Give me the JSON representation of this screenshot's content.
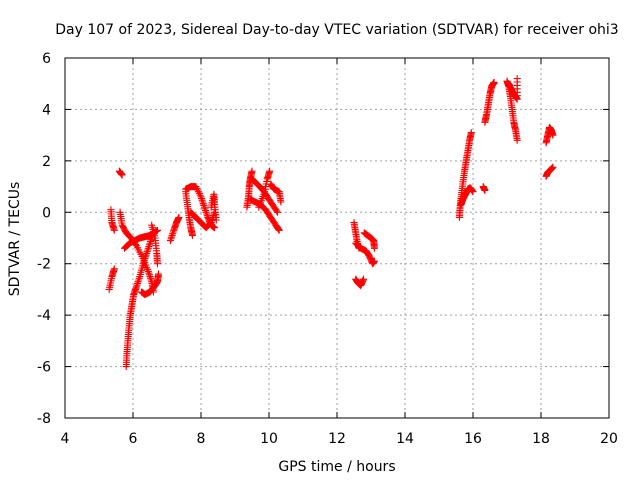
{
  "chart_data": {
    "type": "scatter",
    "title": "Day 107 of 2023, Sidereal Day-to-day VTEC variation (SDTVAR) for receiver ohi3",
    "xlabel": "GPS time / hours",
    "ylabel": "SDTVAR / TECUs",
    "xlim": [
      4,
      20
    ],
    "ylim": [
      -8,
      6
    ],
    "xticks": [
      4,
      6,
      8,
      10,
      12,
      14,
      16,
      18,
      20
    ],
    "yticks": [
      -8,
      -6,
      -4,
      -2,
      0,
      2,
      4,
      6
    ],
    "grid": true,
    "marker": "+",
    "series": [
      {
        "name": "SDTVAR",
        "color": "#ff0000",
        "segments": [
          [
            [
              5.3,
              -3.0
            ],
            [
              5.38,
              -2.5
            ],
            [
              5.45,
              -2.2
            ]
          ],
          [
            [
              5.35,
              0.1
            ],
            [
              5.38,
              -0.4
            ],
            [
              5.45,
              -0.7
            ]
          ],
          [
            [
              5.6,
              1.6
            ],
            [
              5.68,
              1.45
            ]
          ],
          [
            [
              5.62,
              0.0
            ],
            [
              5.68,
              -0.5
            ],
            [
              5.8,
              -0.8
            ],
            [
              5.95,
              -1.0
            ],
            [
              6.1,
              -1.3
            ],
            [
              6.3,
              -1.8
            ],
            [
              6.45,
              -2.3
            ],
            [
              6.55,
              -2.7
            ],
            [
              6.6,
              -3.1
            ]
          ],
          [
            [
              5.8,
              -6.0
            ],
            [
              5.82,
              -5.5
            ],
            [
              5.85,
              -5.0
            ],
            [
              5.88,
              -4.5
            ],
            [
              5.92,
              -4.0
            ],
            [
              5.97,
              -3.6
            ],
            [
              6.02,
              -3.2
            ],
            [
              6.1,
              -2.9
            ],
            [
              6.2,
              -2.5
            ],
            [
              6.3,
              -2.0
            ],
            [
              6.4,
              -1.6
            ],
            [
              6.5,
              -1.2
            ],
            [
              6.6,
              -0.8
            ]
          ],
          [
            [
              5.75,
              -1.4
            ],
            [
              5.9,
              -1.2
            ],
            [
              6.05,
              -1.1
            ],
            [
              6.2,
              -1.0
            ],
            [
              6.35,
              -0.95
            ],
            [
              6.5,
              -0.9
            ],
            [
              6.62,
              -0.8
            ],
            [
              6.72,
              -0.7
            ]
          ],
          [
            [
              6.25,
              -3.1
            ],
            [
              6.35,
              -3.2
            ],
            [
              6.5,
              -3.1
            ],
            [
              6.62,
              -2.9
            ],
            [
              6.72,
              -2.7
            ],
            [
              6.75,
              -2.4
            ]
          ],
          [
            [
              6.55,
              -0.5
            ],
            [
              6.65,
              -1.0
            ],
            [
              6.7,
              -1.6
            ],
            [
              6.72,
              -2.0
            ]
          ],
          [
            [
              7.1,
              -1.1
            ],
            [
              7.2,
              -0.7
            ],
            [
              7.28,
              -0.4
            ],
            [
              7.35,
              -0.2
            ]
          ],
          [
            [
              7.55,
              0.8
            ],
            [
              7.6,
              0.3
            ],
            [
              7.65,
              -0.2
            ],
            [
              7.7,
              -0.6
            ],
            [
              7.75,
              -0.9
            ]
          ],
          [
            [
              7.55,
              0.9
            ],
            [
              7.7,
              1.0
            ],
            [
              7.85,
              1.0
            ],
            [
              8.0,
              0.6
            ],
            [
              8.1,
              0.2
            ],
            [
              8.2,
              -0.2
            ],
            [
              8.3,
              -0.5
            ],
            [
              8.4,
              -0.6
            ]
          ],
          [
            [
              7.7,
              0.0
            ],
            [
              7.85,
              -0.2
            ],
            [
              8.0,
              -0.4
            ],
            [
              8.15,
              -0.6
            ],
            [
              8.3,
              -0.4
            ],
            [
              8.4,
              0.0
            ]
          ],
          [
            [
              8.3,
              0.2
            ],
            [
              8.38,
              0.7
            ],
            [
              8.4,
              0.3
            ],
            [
              8.45,
              -0.3
            ]
          ],
          [
            [
              9.35,
              0.2
            ],
            [
              9.4,
              0.6
            ],
            [
              9.42,
              1.0
            ],
            [
              9.45,
              1.3
            ],
            [
              9.5,
              1.6
            ]
          ],
          [
            [
              9.45,
              0.5
            ],
            [
              9.6,
              0.4
            ],
            [
              9.75,
              0.3
            ],
            [
              9.9,
              0.1
            ],
            [
              10.05,
              -0.2
            ],
            [
              10.2,
              -0.5
            ],
            [
              10.3,
              -0.7
            ]
          ],
          [
            [
              9.5,
              1.3
            ],
            [
              9.65,
              1.1
            ],
            [
              9.8,
              0.9
            ],
            [
              9.95,
              0.6
            ],
            [
              10.1,
              0.3
            ],
            [
              10.25,
              0.0
            ]
          ],
          [
            [
              9.7,
              0.2
            ],
            [
              9.85,
              0.7
            ],
            [
              9.95,
              1.3
            ],
            [
              10.02,
              1.6
            ]
          ],
          [
            [
              10.05,
              1.1
            ],
            [
              10.15,
              0.9
            ],
            [
              10.3,
              0.8
            ],
            [
              10.35,
              0.4
            ]
          ],
          [
            [
              12.5,
              -0.4
            ],
            [
              12.55,
              -0.8
            ],
            [
              12.6,
              -1.2
            ],
            [
              12.65,
              -1.4
            ]
          ],
          [
            [
              12.55,
              -1.2
            ],
            [
              12.7,
              -1.4
            ],
            [
              12.85,
              -1.5
            ],
            [
              12.95,
              -1.7
            ],
            [
              13.05,
              -2.0
            ],
            [
              13.1,
              -1.9
            ]
          ],
          [
            [
              12.55,
              -2.6
            ],
            [
              12.62,
              -2.75
            ],
            [
              12.7,
              -2.85
            ],
            [
              12.78,
              -2.6
            ]
          ],
          [
            [
              12.8,
              -0.8
            ],
            [
              12.9,
              -0.9
            ],
            [
              13.0,
              -1.0
            ],
            [
              13.08,
              -1.1
            ],
            [
              13.1,
              -1.4
            ]
          ],
          [
            [
              15.6,
              -0.2
            ],
            [
              15.62,
              0.2
            ],
            [
              15.65,
              0.6
            ],
            [
              15.7,
              1.1
            ],
            [
              15.75,
              1.6
            ],
            [
              15.8,
              2.0
            ],
            [
              15.85,
              2.4
            ],
            [
              15.9,
              2.8
            ],
            [
              15.95,
              3.1
            ]
          ],
          [
            [
              15.65,
              0.3
            ],
            [
              15.7,
              0.5
            ],
            [
              15.78,
              0.7
            ],
            [
              15.85,
              0.9
            ],
            [
              15.92,
              0.95
            ],
            [
              16.0,
              0.8
            ]
          ],
          [
            [
              16.3,
              1.0
            ],
            [
              16.35,
              0.85
            ]
          ],
          [
            [
              16.35,
              3.5
            ],
            [
              16.4,
              3.8
            ],
            [
              16.45,
              4.2
            ],
            [
              16.5,
              4.6
            ],
            [
              16.55,
              4.9
            ],
            [
              16.6,
              5.0
            ],
            [
              16.62,
              5.05
            ]
          ],
          [
            [
              17.0,
              5.1
            ],
            [
              17.05,
              4.9
            ],
            [
              17.1,
              4.5
            ],
            [
              17.15,
              4.0
            ],
            [
              17.2,
              3.5
            ],
            [
              17.25,
              3.2
            ],
            [
              17.3,
              2.8
            ]
          ],
          [
            [
              17.05,
              5.0
            ],
            [
              17.12,
              4.8
            ],
            [
              17.2,
              4.6
            ],
            [
              17.25,
              4.5
            ],
            [
              17.3,
              4.4
            ],
            [
              17.3,
              5.2
            ]
          ],
          [
            [
              18.15,
              2.7
            ],
            [
              18.2,
              3.0
            ],
            [
              18.25,
              3.3
            ],
            [
              18.3,
              3.2
            ],
            [
              18.35,
              3.0
            ]
          ],
          [
            [
              18.15,
              1.4
            ],
            [
              18.2,
              1.55
            ],
            [
              18.28,
              1.65
            ],
            [
              18.35,
              1.75
            ]
          ]
        ]
      }
    ]
  }
}
